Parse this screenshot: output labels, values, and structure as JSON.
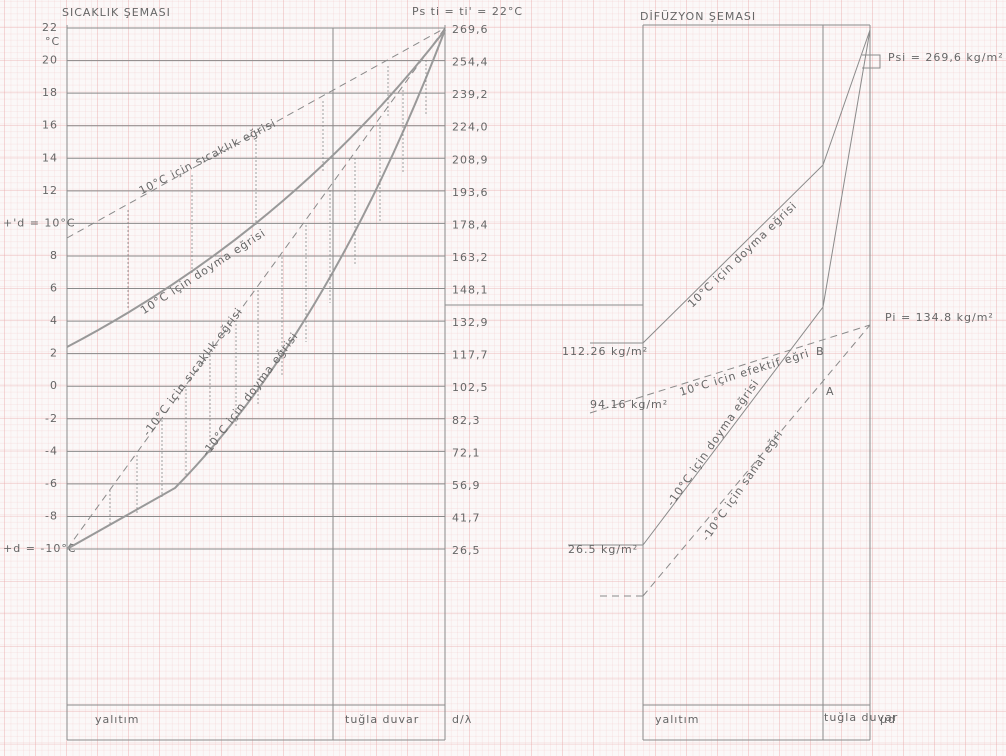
{
  "left_chart": {
    "title": "SICAKLIK ŞEMASI",
    "unit": "°C",
    "top_label": "Ps  ti = ti' = 22°C",
    "left_labels": [
      "22",
      "20",
      "18",
      "16",
      "14",
      "12",
      "+'d = 10°C",
      "8",
      "6",
      "4",
      "2",
      "0",
      "-2",
      "-4",
      "-6",
      "-8",
      "+d = -10°C"
    ],
    "right_labels": [
      "269,6",
      "254,4",
      "239,2",
      "224,0",
      "208,9",
      "193,6",
      "178,4",
      "163,2",
      "148,1",
      "132,9",
      "117,7",
      "102,5",
      "82,3",
      "72,1",
      "56,9",
      "41,7",
      "26,5"
    ],
    "curve_labels": [
      "10°C için sıcaklık eğrisi",
      "10°C için doyma eğrisi",
      "-10°C için sıcaklık eğrisi",
      "-10°C için doyma eğrisi"
    ],
    "bottom_labels": [
      "yalıtım",
      "tuğla duvar",
      "d/λ"
    ]
  },
  "right_chart": {
    "title": "DİFÜZYON ŞEMASI",
    "psi_label": "Psi = 269,6 kg/m²",
    "pi_label": "Pi = 134.8 kg/m²",
    "side_labels": [
      "112.26 kg/m²",
      "94.16 kg/m²",
      "26.5 kg/m²"
    ],
    "curve_labels": [
      "10°C için doyma eğrisi",
      "10°C için efektif eğri",
      "-10°C için doyma eğrisi",
      "-10°C için sanal eğri"
    ],
    "point_labels": [
      "B",
      "A"
    ],
    "bottom_labels": [
      "yalıtım",
      "tuğla duvar",
      "μd"
    ]
  }
}
